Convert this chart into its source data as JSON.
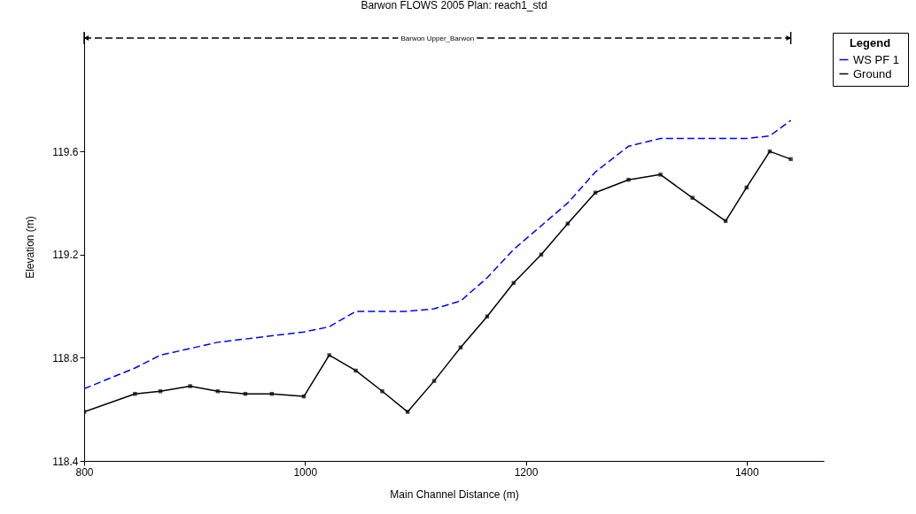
{
  "chart_data": {
    "type": "line",
    "title": "Barwon FLOWS 2005        Plan: reach1_std",
    "xlabel": "Main Channel Distance (m)",
    "ylabel": "Elevation (m)",
    "legend_title": "Legend",
    "legend": "top right",
    "grid": false,
    "annotations": [
      "Barwon Upper_Barwon"
    ],
    "xlim": [
      800,
      1470
    ],
    "xticks": [
      800,
      1000,
      1200,
      1400
    ],
    "ylim": [
      118.4,
      120.06
    ],
    "yticks": [
      118.4,
      118.8,
      119.2,
      119.6
    ],
    "series": [
      {
        "name": "WS  PF 1",
        "color": "#0000ff",
        "line_style": "dashed",
        "marker": "none",
        "x": [
          800,
          846,
          869,
          921,
          999,
          1022,
          1046,
          1093,
          1117,
          1141,
          1165,
          1189,
          1238,
          1263,
          1293,
          1322,
          1351,
          1400,
          1421,
          1440
        ],
        "values": [
          118.68,
          118.76,
          118.81,
          118.86,
          118.9,
          118.92,
          118.98,
          118.98,
          118.99,
          119.02,
          119.11,
          119.22,
          119.4,
          119.52,
          119.62,
          119.65,
          119.65,
          119.65,
          119.66,
          119.72
        ]
      },
      {
        "name": "Ground",
        "color": "#000000",
        "line_style": "solid",
        "marker": "square",
        "x": [
          800,
          846,
          869,
          896,
          921,
          946,
          970,
          999,
          1022,
          1046,
          1070,
          1093,
          1117,
          1141,
          1165,
          1189,
          1214,
          1238,
          1263,
          1293,
          1322,
          1351,
          1381,
          1400,
          1421,
          1440
        ],
        "values": [
          118.59,
          118.66,
          118.67,
          118.69,
          118.67,
          118.66,
          118.66,
          118.65,
          118.81,
          118.75,
          118.67,
          118.59,
          118.71,
          118.84,
          118.96,
          119.09,
          119.2,
          119.32,
          119.44,
          119.49,
          119.51,
          119.42,
          119.33,
          119.46,
          119.6,
          119.57
        ]
      }
    ]
  }
}
